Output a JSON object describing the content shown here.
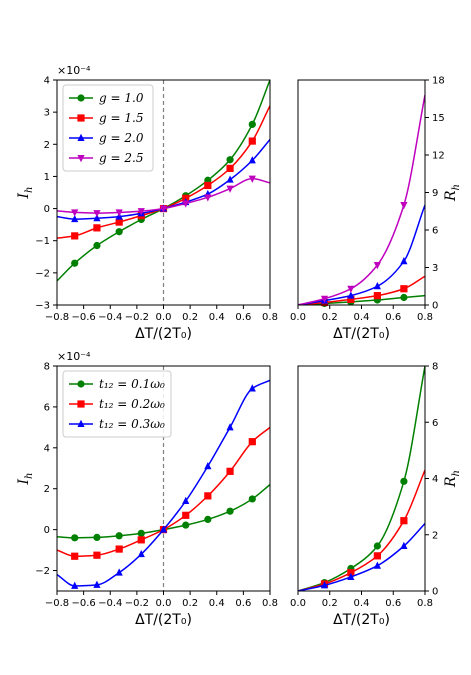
{
  "chart_data": [
    {
      "id": "top-left",
      "type": "line",
      "xlabel": "ΔT/(2T₀)",
      "ylabel": "I_h",
      "xlim": [
        -0.8,
        0.8
      ],
      "ylim": [
        -3,
        4
      ],
      "xticks": [
        -0.8,
        -0.6,
        -0.4,
        -0.2,
        0.0,
        0.2,
        0.4,
        0.6,
        0.8
      ],
      "xtick_labels": [
        "−0.8",
        "−0.6",
        "−0.4",
        "−0.2",
        "0.0",
        "0.2",
        "0.4",
        "0.6",
        "0.8"
      ],
      "yticks": [
        -3,
        -2,
        -1,
        0,
        1,
        2,
        3,
        4
      ],
      "ytick_labels": [
        "−3",
        "−2",
        "−1",
        "0",
        "1",
        "2",
        "3",
        "4"
      ],
      "offset_text": "×10⁻⁴",
      "vline_x": 0,
      "legend_position": "top-left",
      "series": [
        {
          "name": "g = 1.0",
          "color": "#008000",
          "marker": "circle",
          "x": [
            -0.8,
            -0.667,
            -0.5,
            -0.333,
            -0.167,
            0.0,
            0.167,
            0.333,
            0.5,
            0.667,
            0.8
          ],
          "y": [
            -2.25,
            -1.7,
            -1.15,
            -0.72,
            -0.34,
            0.0,
            0.4,
            0.88,
            1.52,
            2.62,
            4.0
          ]
        },
        {
          "name": "g = 1.5",
          "color": "#ff0000",
          "marker": "square",
          "x": [
            -0.8,
            -0.667,
            -0.5,
            -0.333,
            -0.167,
            0.0,
            0.167,
            0.333,
            0.5,
            0.667,
            0.8
          ],
          "y": [
            -0.92,
            -0.85,
            -0.6,
            -0.42,
            -0.22,
            0.0,
            0.32,
            0.72,
            1.25,
            2.1,
            3.2
          ]
        },
        {
          "name": "g = 2.0",
          "color": "#0000ff",
          "marker": "triangle-up",
          "x": [
            -0.8,
            -0.667,
            -0.5,
            -0.333,
            -0.167,
            0.0,
            0.167,
            0.333,
            0.5,
            0.667,
            0.8
          ],
          "y": [
            -0.25,
            -0.33,
            -0.3,
            -0.25,
            -0.15,
            0.0,
            0.2,
            0.45,
            0.9,
            1.5,
            2.15
          ]
        },
        {
          "name": "g = 2.5",
          "color": "#bf00bf",
          "marker": "triangle-down",
          "x": [
            -0.8,
            -0.667,
            -0.5,
            -0.333,
            -0.167,
            0.0,
            0.167,
            0.333,
            0.5,
            0.667,
            0.8
          ],
          "y": [
            -0.07,
            -0.12,
            -0.14,
            -0.12,
            -0.08,
            0.0,
            0.16,
            0.35,
            0.62,
            0.93,
            0.8
          ]
        }
      ]
    },
    {
      "id": "top-right",
      "type": "line",
      "xlabel": "ΔT/(2T₀)",
      "ylabel": "R_h",
      "xlim": [
        0.0,
        0.8
      ],
      "ylim": [
        0,
        18
      ],
      "xticks": [
        0.0,
        0.2,
        0.4,
        0.6,
        0.8
      ],
      "xtick_labels": [
        "0.0",
        "0.2",
        "0.4",
        "0.6",
        "0.8"
      ],
      "yticks": [
        0,
        3,
        6,
        9,
        12,
        15,
        18
      ],
      "ytick_labels": [
        "0",
        "3",
        "6",
        "9",
        "12",
        "15",
        "18"
      ],
      "series": [
        {
          "name": "g = 1.0",
          "color": "#008000",
          "marker": "circle",
          "x": [
            0.0,
            0.167,
            0.333,
            0.5,
            0.667,
            0.8
          ],
          "y": [
            0.0,
            0.12,
            0.25,
            0.4,
            0.6,
            0.75
          ]
        },
        {
          "name": "g = 1.5",
          "color": "#ff0000",
          "marker": "square",
          "x": [
            0.0,
            0.167,
            0.333,
            0.5,
            0.667,
            0.8
          ],
          "y": [
            0.0,
            0.2,
            0.45,
            0.75,
            1.3,
            2.3
          ]
        },
        {
          "name": "g = 2.0",
          "color": "#0000ff",
          "marker": "triangle-up",
          "x": [
            0.0,
            0.167,
            0.333,
            0.5,
            0.667,
            0.8
          ],
          "y": [
            0.0,
            0.35,
            0.75,
            1.5,
            3.5,
            8.0
          ]
        },
        {
          "name": "g = 2.5",
          "color": "#bf00bf",
          "marker": "triangle-down",
          "x": [
            0.0,
            0.167,
            0.333,
            0.5,
            0.667,
            0.8
          ],
          "y": [
            0.0,
            0.5,
            1.3,
            3.2,
            8.0,
            16.8
          ]
        }
      ]
    },
    {
      "id": "bottom-left",
      "type": "line",
      "xlabel": "ΔT/(2T₀)",
      "ylabel": "I_h",
      "xlim": [
        -0.8,
        0.8
      ],
      "ylim": [
        -3,
        8
      ],
      "xticks": [
        -0.8,
        -0.6,
        -0.4,
        -0.2,
        0.0,
        0.2,
        0.4,
        0.6,
        0.8
      ],
      "xtick_labels": [
        "−0.8",
        "−0.6",
        "−0.4",
        "−0.2",
        "0.0",
        "0.2",
        "0.4",
        "0.6",
        "0.8"
      ],
      "yticks": [
        -2,
        0,
        2,
        4,
        6,
        8
      ],
      "ytick_labels": [
        "−2",
        "0",
        "2",
        "4",
        "6",
        "8"
      ],
      "offset_text": "×10⁻⁴",
      "vline_x": 0,
      "legend_position": "top-left",
      "series": [
        {
          "name": "t₁₂ = 0.1ω₀",
          "color": "#008000",
          "marker": "circle",
          "x": [
            -0.8,
            -0.667,
            -0.5,
            -0.333,
            -0.167,
            0.0,
            0.167,
            0.333,
            0.5,
            0.667,
            0.8
          ],
          "y": [
            -0.35,
            -0.4,
            -0.38,
            -0.3,
            -0.18,
            0.0,
            0.22,
            0.5,
            0.9,
            1.5,
            2.2
          ]
        },
        {
          "name": "t₁₂ = 0.2ω₀",
          "color": "#ff0000",
          "marker": "square",
          "x": [
            -0.8,
            -0.667,
            -0.5,
            -0.333,
            -0.167,
            0.0,
            0.167,
            0.333,
            0.5,
            0.667,
            0.8
          ],
          "y": [
            -1.0,
            -1.3,
            -1.25,
            -0.95,
            -0.5,
            0.0,
            0.7,
            1.65,
            2.85,
            4.3,
            5.0
          ]
        },
        {
          "name": "t₁₂ = 0.3ω₀",
          "color": "#0000ff",
          "marker": "triangle-up",
          "x": [
            -0.8,
            -0.667,
            -0.5,
            -0.333,
            -0.167,
            0.0,
            0.167,
            0.333,
            0.5,
            0.667,
            0.8
          ],
          "y": [
            -2.2,
            -2.75,
            -2.7,
            -2.1,
            -1.2,
            0.0,
            1.4,
            3.1,
            5.0,
            6.9,
            7.3
          ]
        }
      ]
    },
    {
      "id": "bottom-right",
      "type": "line",
      "xlabel": "ΔT/(2T₀)",
      "ylabel": "R_h",
      "xlim": [
        0.0,
        0.8
      ],
      "ylim": [
        0,
        8
      ],
      "xticks": [
        0.0,
        0.2,
        0.4,
        0.6,
        0.8
      ],
      "xtick_labels": [
        "0.0",
        "0.2",
        "0.4",
        "0.6",
        "0.8"
      ],
      "yticks": [
        0,
        2,
        4,
        6,
        8
      ],
      "ytick_labels": [
        "0",
        "2",
        "4",
        "6",
        "8"
      ],
      "series": [
        {
          "name": "t₁₂ = 0.1ω₀",
          "color": "#008000",
          "marker": "circle",
          "x": [
            0.0,
            0.167,
            0.333,
            0.5,
            0.667,
            0.8
          ],
          "y": [
            0.0,
            0.3,
            0.8,
            1.6,
            3.9,
            8.0
          ]
        },
        {
          "name": "t₁₂ = 0.2ω₀",
          "color": "#ff0000",
          "marker": "square",
          "x": [
            0.0,
            0.167,
            0.333,
            0.5,
            0.667,
            0.8
          ],
          "y": [
            0.0,
            0.25,
            0.65,
            1.25,
            2.5,
            4.3
          ]
        },
        {
          "name": "t₁₂ = 0.3ω₀",
          "color": "#0000ff",
          "marker": "triangle-up",
          "x": [
            0.0,
            0.167,
            0.333,
            0.5,
            0.667,
            0.8
          ],
          "y": [
            0.0,
            0.2,
            0.5,
            0.9,
            1.6,
            2.4
          ]
        }
      ]
    }
  ]
}
